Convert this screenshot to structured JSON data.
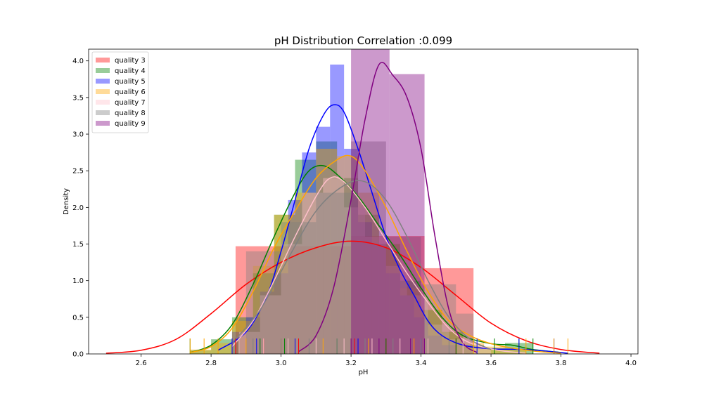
{
  "chart_data": {
    "type": "histogram-kde",
    "title": "pH Distribution Correlation :0.099",
    "xlabel": "pH",
    "ylabel": "Density",
    "xlim": [
      2.45,
      4.02
    ],
    "ylim": [
      0,
      4.16
    ],
    "xticks": [
      2.6,
      2.8,
      3.0,
      3.2,
      3.4,
      3.6,
      3.8,
      4.0
    ],
    "yticks": [
      0.0,
      0.5,
      1.0,
      1.5,
      2.0,
      2.5,
      3.0,
      3.5,
      4.0
    ],
    "grid": false,
    "legend_position": "top-left",
    "series": [
      {
        "name": "quality 3",
        "color": "#ff0000",
        "bins": [
          [
            2.87,
            3.2,
            1.47
          ],
          [
            3.2,
            3.41,
            1.61
          ],
          [
            3.41,
            3.55,
            1.17
          ]
        ],
        "kde": [
          [
            2.5,
            0.01
          ],
          [
            2.6,
            0.05
          ],
          [
            2.7,
            0.2
          ],
          [
            2.8,
            0.55
          ],
          [
            2.9,
            0.95
          ],
          [
            3.0,
            1.25
          ],
          [
            3.1,
            1.45
          ],
          [
            3.2,
            1.54
          ],
          [
            3.3,
            1.45
          ],
          [
            3.4,
            1.18
          ],
          [
            3.5,
            0.8
          ],
          [
            3.6,
            0.42
          ],
          [
            3.7,
            0.18
          ],
          [
            3.8,
            0.06
          ],
          [
            3.91,
            0.01
          ]
        ],
        "rug": [
          2.87,
          2.95,
          3.05,
          3.21,
          3.3,
          3.38,
          3.42,
          3.5
        ]
      },
      {
        "name": "quality 4",
        "color": "#008000",
        "bins": [
          [
            2.74,
            2.8,
            0.05
          ],
          [
            2.8,
            2.86,
            0.2
          ],
          [
            2.86,
            2.92,
            0.5
          ],
          [
            2.92,
            2.98,
            1.1
          ],
          [
            2.98,
            3.04,
            1.9
          ],
          [
            3.04,
            3.1,
            2.65
          ],
          [
            3.1,
            3.16,
            2.9
          ],
          [
            3.16,
            3.22,
            2.4
          ],
          [
            3.22,
            3.28,
            1.9
          ],
          [
            3.28,
            3.34,
            1.5
          ],
          [
            3.34,
            3.4,
            1.0
          ],
          [
            3.4,
            3.46,
            0.6
          ],
          [
            3.46,
            3.52,
            0.3
          ],
          [
            3.52,
            3.58,
            0.12
          ],
          [
            3.58,
            3.64,
            0.08
          ],
          [
            3.64,
            3.72,
            0.15
          ]
        ],
        "kde": [
          [
            2.74,
            0.02
          ],
          [
            2.8,
            0.12
          ],
          [
            2.86,
            0.4
          ],
          [
            2.92,
            0.95
          ],
          [
            2.98,
            1.6
          ],
          [
            3.04,
            2.2
          ],
          [
            3.08,
            2.5
          ],
          [
            3.12,
            2.57
          ],
          [
            3.16,
            2.45
          ],
          [
            3.22,
            2.15
          ],
          [
            3.28,
            1.75
          ],
          [
            3.34,
            1.35
          ],
          [
            3.4,
            0.9
          ],
          [
            3.46,
            0.5
          ],
          [
            3.52,
            0.25
          ],
          [
            3.6,
            0.14
          ],
          [
            3.66,
            0.12
          ],
          [
            3.72,
            0.06
          ],
          [
            3.8,
            0.02
          ]
        ],
        "rug": [
          2.74,
          2.88,
          2.94,
          3.01,
          3.16,
          3.3,
          3.5,
          3.61,
          3.68,
          3.72
        ]
      },
      {
        "name": "quality 5",
        "color": "#0000ff",
        "bins": [
          [
            2.86,
            2.9,
            0.3
          ],
          [
            2.9,
            2.94,
            0.5
          ],
          [
            2.94,
            2.98,
            0.85
          ],
          [
            2.98,
            3.02,
            1.1
          ],
          [
            3.02,
            3.06,
            2.1
          ],
          [
            3.06,
            3.1,
            2.75
          ],
          [
            3.1,
            3.14,
            3.1
          ],
          [
            3.14,
            3.18,
            3.95
          ],
          [
            3.18,
            3.22,
            2.8
          ],
          [
            3.22,
            3.26,
            1.8
          ],
          [
            3.26,
            3.3,
            1.5
          ],
          [
            3.3,
            3.34,
            1.1
          ],
          [
            3.34,
            3.38,
            0.8
          ],
          [
            3.38,
            3.42,
            0.5
          ],
          [
            3.42,
            3.46,
            0.25
          ],
          [
            3.46,
            3.5,
            0.12
          ]
        ],
        "kde": [
          [
            2.82,
            0.05
          ],
          [
            2.9,
            0.3
          ],
          [
            2.96,
            0.8
          ],
          [
            3.0,
            1.4
          ],
          [
            3.04,
            2.1
          ],
          [
            3.08,
            2.8
          ],
          [
            3.12,
            3.25
          ],
          [
            3.15,
            3.4
          ],
          [
            3.18,
            3.3
          ],
          [
            3.22,
            2.8
          ],
          [
            3.26,
            2.2
          ],
          [
            3.3,
            1.6
          ],
          [
            3.34,
            1.15
          ],
          [
            3.38,
            0.8
          ],
          [
            3.42,
            0.45
          ],
          [
            3.46,
            0.25
          ],
          [
            3.52,
            0.12
          ],
          [
            3.6,
            0.07
          ],
          [
            3.7,
            0.06
          ],
          [
            3.82,
            0.01
          ]
        ],
        "rug": [
          2.86,
          2.93,
          3.04,
          3.22,
          3.4,
          3.56,
          3.68,
          3.78
        ]
      },
      {
        "name": "quality 6",
        "color": "#ffa500",
        "bins": [
          [
            2.74,
            2.8,
            0.06
          ],
          [
            2.8,
            2.86,
            0.15
          ],
          [
            2.86,
            2.92,
            0.45
          ],
          [
            2.92,
            2.98,
            1.2
          ],
          [
            2.98,
            3.04,
            1.9
          ],
          [
            3.04,
            3.1,
            2.2
          ],
          [
            3.1,
            3.16,
            2.8
          ],
          [
            3.16,
            3.22,
            2.7
          ],
          [
            3.22,
            3.28,
            2.2
          ],
          [
            3.28,
            3.34,
            1.5
          ],
          [
            3.34,
            3.4,
            0.9
          ],
          [
            3.4,
            3.46,
            0.6
          ],
          [
            3.46,
            3.52,
            0.3
          ],
          [
            3.52,
            3.58,
            0.15
          ],
          [
            3.58,
            3.64,
            0.1
          ],
          [
            3.64,
            3.7,
            0.06
          ]
        ],
        "kde": [
          [
            2.74,
            0.02
          ],
          [
            2.8,
            0.1
          ],
          [
            2.86,
            0.35
          ],
          [
            2.92,
            0.85
          ],
          [
            2.98,
            1.45
          ],
          [
            3.04,
            1.95
          ],
          [
            3.1,
            2.4
          ],
          [
            3.16,
            2.65
          ],
          [
            3.2,
            2.7
          ],
          [
            3.24,
            2.5
          ],
          [
            3.3,
            2.0
          ],
          [
            3.36,
            1.4
          ],
          [
            3.42,
            0.85
          ],
          [
            3.48,
            0.45
          ],
          [
            3.54,
            0.25
          ],
          [
            3.6,
            0.14
          ],
          [
            3.66,
            0.08
          ],
          [
            3.72,
            0.04
          ],
          [
            3.8,
            0.01
          ]
        ],
        "rug": [
          2.74,
          2.78,
          2.82,
          2.9,
          3.0,
          3.12,
          3.25,
          3.38,
          3.55,
          3.7,
          3.78,
          3.82
        ]
      },
      {
        "name": "quality 7",
        "color": "#ffc0cb",
        "bins": [
          [
            2.88,
            2.94,
            0.3
          ],
          [
            2.94,
            3.0,
            0.8
          ],
          [
            3.0,
            3.06,
            1.5
          ],
          [
            3.06,
            3.12,
            2.2
          ],
          [
            3.12,
            3.18,
            2.4
          ],
          [
            3.18,
            3.24,
            2.0
          ],
          [
            3.24,
            3.3,
            1.6
          ],
          [
            3.3,
            3.36,
            1.2
          ],
          [
            3.36,
            3.42,
            0.8
          ],
          [
            3.42,
            3.48,
            0.4
          ],
          [
            3.48,
            3.54,
            0.2
          ],
          [
            3.54,
            3.6,
            0.08
          ]
        ],
        "kde": [
          [
            2.86,
            0.1
          ],
          [
            2.92,
            0.45
          ],
          [
            2.98,
            1.0
          ],
          [
            3.04,
            1.6
          ],
          [
            3.1,
            2.15
          ],
          [
            3.14,
            2.4
          ],
          [
            3.18,
            2.35
          ],
          [
            3.24,
            2.0
          ],
          [
            3.3,
            1.55
          ],
          [
            3.36,
            1.1
          ],
          [
            3.42,
            0.7
          ],
          [
            3.48,
            0.35
          ],
          [
            3.54,
            0.15
          ],
          [
            3.62,
            0.05
          ],
          [
            3.7,
            0.01
          ]
        ],
        "rug": [
          2.88,
          2.95,
          3.02,
          3.1,
          3.18,
          3.26,
          3.34,
          3.42,
          3.52
        ]
      },
      {
        "name": "quality 8",
        "color": "#808080",
        "bins": [
          [
            2.9,
            3.0,
            1.4
          ],
          [
            3.0,
            3.1,
            1.8
          ],
          [
            3.1,
            3.2,
            2.2
          ],
          [
            3.2,
            3.3,
            2.9
          ],
          [
            3.3,
            3.4,
            1.6
          ],
          [
            3.4,
            3.5,
            0.95
          ],
          [
            3.5,
            3.55,
            0.55
          ]
        ],
        "kde": [
          [
            2.86,
            0.15
          ],
          [
            2.94,
            0.6
          ],
          [
            3.02,
            1.3
          ],
          [
            3.1,
            1.95
          ],
          [
            3.18,
            2.3
          ],
          [
            3.24,
            2.35
          ],
          [
            3.3,
            2.1
          ],
          [
            3.36,
            1.6
          ],
          [
            3.42,
            1.0
          ],
          [
            3.48,
            0.5
          ],
          [
            3.54,
            0.2
          ],
          [
            3.6,
            0.06
          ]
        ],
        "rug": [
          2.92,
          3.0,
          3.08,
          3.16,
          3.24,
          3.32,
          3.4,
          3.48
        ]
      },
      {
        "name": "quality 9",
        "color": "#800080",
        "bins": [
          [
            3.2,
            3.31,
            4.3
          ],
          [
            3.31,
            3.41,
            3.82
          ]
        ],
        "kde": [
          [
            3.05,
            0.03
          ],
          [
            3.1,
            0.25
          ],
          [
            3.15,
            0.9
          ],
          [
            3.2,
            2.1
          ],
          [
            3.24,
            3.2
          ],
          [
            3.28,
            3.95
          ],
          [
            3.32,
            3.8
          ],
          [
            3.36,
            3.5
          ],
          [
            3.4,
            2.8
          ],
          [
            3.44,
            1.6
          ],
          [
            3.48,
            0.6
          ],
          [
            3.52,
            0.15
          ],
          [
            3.56,
            0.02
          ]
        ],
        "rug": [
          3.2,
          3.28,
          3.37,
          3.41
        ]
      }
    ]
  }
}
